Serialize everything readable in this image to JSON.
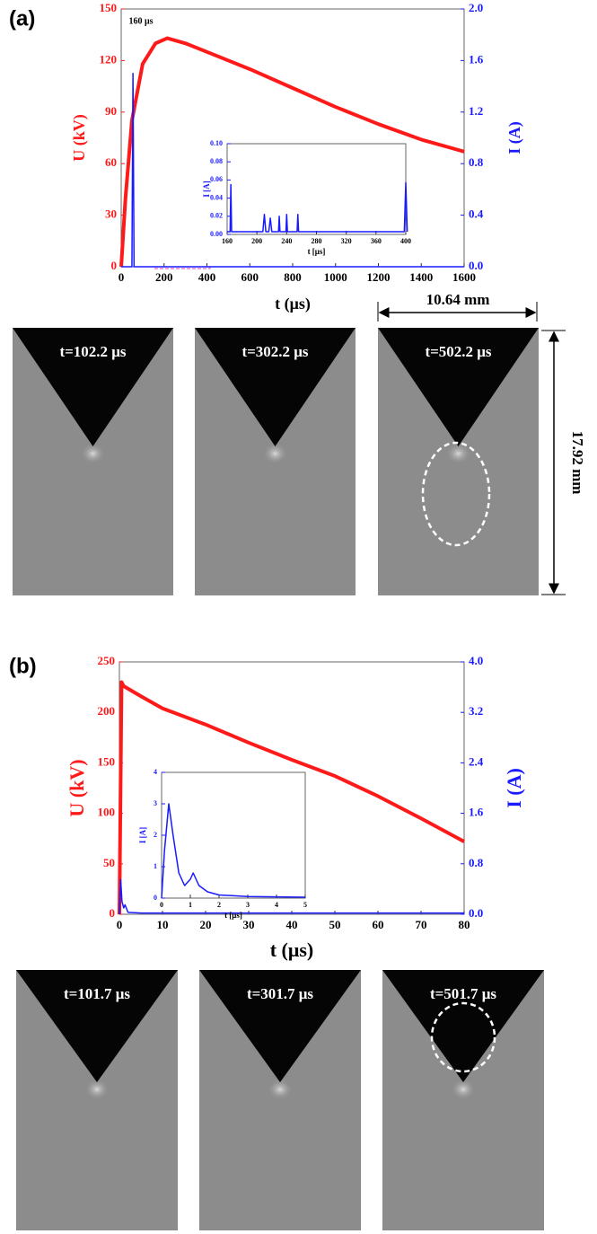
{
  "panels": [
    {
      "label": "(a)",
      "frames": [
        "t=102.2 μs",
        "t=302.2 μs",
        "t=502.2 μs"
      ],
      "width": "10.64 mm",
      "height": "17.92 mm"
    },
    {
      "label": "(b)",
      "frames": [
        "t=101.7 μs",
        "t=301.7 μs",
        "t=501.7 μs"
      ]
    }
  ],
  "chart_data": [
    {
      "type": "line",
      "xlabel": "t (μs)",
      "ylabel": "U (kV)",
      "y2label": "I (A)",
      "annotation": "160 μs",
      "xlim": [
        0,
        1600
      ],
      "xticks": [
        0,
        200,
        400,
        600,
        800,
        1000,
        1200,
        1400,
        1600
      ],
      "ylim": [
        0,
        150
      ],
      "yticks": [
        0,
        30,
        60,
        90,
        120,
        150
      ],
      "y2lim": [
        0,
        2
      ],
      "y2ticks": [
        {
          "value": 0,
          "label": "0.0"
        },
        0.4,
        0.8,
        1.2,
        1.6,
        {
          "value": 2,
          "label": "2.0"
        }
      ],
      "series": [
        {
          "color": "#ff1a1a",
          "x": [
            0,
            20,
            50,
            100,
            160,
            215,
            300,
            400,
            600,
            800,
            1000,
            1200,
            1400,
            1600
          ],
          "values": [
            0,
            40,
            85,
            118,
            130,
            133,
            130,
            125,
            115,
            104,
            93,
            83,
            74,
            67
          ]
        },
        {
          "color": "#1a1aff",
          "axis": "y2",
          "x": [
            0,
            50,
            55,
            60,
            1600
          ],
          "values": [
            0,
            0,
            1.5,
            0,
            0
          ]
        }
      ]
    },
    {
      "type": "line",
      "xlabel": "t [μs]",
      "ylabel": "I [A]",
      "xlim": [
        160,
        400
      ],
      "xticks": [
        160,
        200,
        240,
        280,
        320,
        360,
        400
      ],
      "ylim": [
        0,
        0.1
      ],
      "yticks": [
        {
          "value": 0,
          "label": "0.00"
        },
        0.02,
        0.04,
        0.06,
        0.08,
        {
          "value": 0.1,
          "label": "0.10"
        }
      ],
      "series": [
        {
          "color": "#1a1aff",
          "x": [
            160,
            164,
            165,
            166,
            208,
            210,
            212,
            216,
            218,
            220,
            229,
            230,
            231,
            239,
            240,
            241,
            254,
            255,
            256,
            398,
            400,
            402
          ],
          "values": [
            0.003,
            0.003,
            0.055,
            0.003,
            0.003,
            0.022,
            0.003,
            0.003,
            0.018,
            0.003,
            0.003,
            0.02,
            0.003,
            0.003,
            0.022,
            0.003,
            0.003,
            0.022,
            0.003,
            0.003,
            0.057,
            0.003
          ]
        }
      ]
    },
    {
      "type": "line",
      "xlabel": "t (μs)",
      "ylabel": "U (kV)",
      "y2label": "I (A)",
      "xlim": [
        0,
        80
      ],
      "xticks": [
        0,
        10,
        20,
        30,
        40,
        50,
        60,
        70,
        80
      ],
      "ylim": [
        0,
        250
      ],
      "yticks": [
        0,
        50,
        100,
        150,
        200,
        250
      ],
      "y2lim": [
        0,
        4
      ],
      "y2ticks": [
        {
          "value": 0,
          "label": "0.0"
        },
        0.8,
        1.6,
        2.4,
        3.2,
        {
          "value": 4,
          "label": "4.0"
        }
      ],
      "series": [
        {
          "color": "#ff1a1a",
          "x": [
            0,
            0.5,
            1,
            5,
            10,
            20,
            30,
            40,
            50,
            60,
            70,
            80
          ],
          "values": [
            0,
            230,
            226,
            216,
            204,
            188,
            170,
            153,
            137,
            117,
            95,
            72
          ]
        },
        {
          "color": "#1a1aff",
          "axis": "y2",
          "x": [
            0,
            0.3,
            0.6,
            1,
            1.3,
            2,
            5,
            80
          ],
          "values": [
            0,
            0.55,
            0.2,
            0.1,
            0.15,
            0.03,
            0.02,
            0.02
          ]
        }
      ]
    },
    {
      "type": "line",
      "xlabel": "t [μs]",
      "ylabel": "I [A]",
      "xlim": [
        0,
        5
      ],
      "xticks": [
        0,
        1,
        2,
        3,
        4,
        5
      ],
      "ylim": [
        0,
        4
      ],
      "yticks": [
        0,
        1,
        2,
        3,
        4
      ],
      "series": [
        {
          "color": "#1a1aff",
          "x": [
            0,
            0.1,
            0.25,
            0.4,
            0.6,
            0.8,
            1,
            1.1,
            1.3,
            1.6,
            2,
            3,
            5
          ],
          "values": [
            0,
            1.5,
            3,
            2,
            0.8,
            0.4,
            0.6,
            0.8,
            0.4,
            0.2,
            0.1,
            0.05,
            0.03
          ]
        }
      ]
    }
  ]
}
